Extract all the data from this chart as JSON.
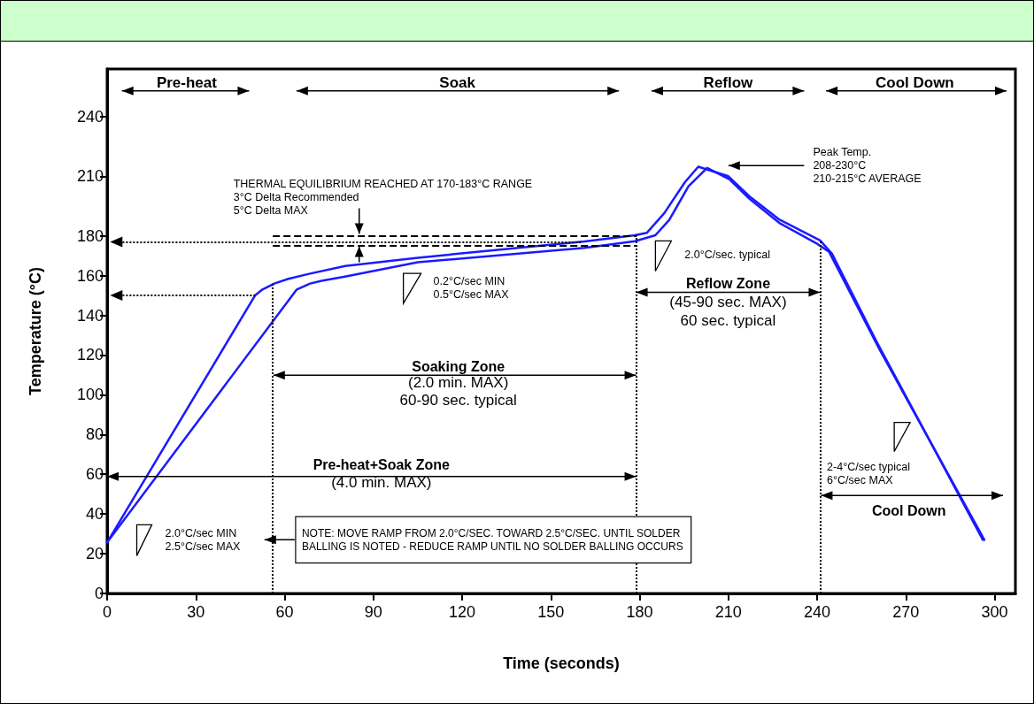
{
  "chart_data": {
    "type": "line",
    "xlabel": "Time (seconds)",
    "ylabel": "Temperature (°C)",
    "xlim": [
      0,
      307
    ],
    "xticks": [
      0,
      30,
      60,
      90,
      120,
      150,
      180,
      210,
      240,
      270,
      300
    ],
    "ylim": [
      0,
      264
    ],
    "yticks": [
      0,
      20,
      40,
      60,
      80,
      100,
      120,
      140,
      160,
      180,
      210,
      240
    ],
    "grid": false,
    "marker": "none",
    "line_style": "solid",
    "series": [
      {
        "color": "#1a1aff",
        "x": [
          0,
          50,
          52.5,
          56.5,
          61.3,
          68.6,
          80.5,
          105,
          161.4,
          178.4,
          182.4,
          188.3,
          195.3,
          199.8,
          210,
          217,
          227,
          241,
          245,
          260,
          296
        ],
        "values": [
          25.7,
          150,
          153,
          156,
          158.4,
          161,
          164.8,
          169,
          177.2,
          180.3,
          181.5,
          191.4,
          207,
          214.8,
          210,
          200,
          188.4,
          177.7,
          171,
          127,
          27
        ]
      },
      {
        "color": "#1a1aff",
        "x": [
          0,
          64.1,
          68.6,
          72.5,
          80.4,
          105,
          161.4,
          178.4,
          185.3,
          190,
          196.5,
          202.8,
          210.3,
          217.2,
          227.2,
          240,
          244,
          261,
          296.5
        ],
        "values": [
          25.7,
          153,
          156,
          157.4,
          159.5,
          166.7,
          174,
          177.3,
          180.3,
          188,
          205,
          214.2,
          208.5,
          198.5,
          186.5,
          176,
          172,
          123,
          27
        ]
      }
    ],
    "ref_lines": [
      {
        "axis": "x",
        "value": 56,
        "color": "#000000",
        "line_style": "dotted"
      },
      {
        "axis": "x",
        "value": 179,
        "color": "#000000",
        "line_style": "dotted"
      },
      {
        "axis": "x",
        "value": 241,
        "color": "#000000",
        "line_style": "dotted"
      },
      {
        "axis": "y",
        "value": 150,
        "color": "#000000",
        "line_style": "dotted"
      },
      {
        "axis": "y",
        "value": 177,
        "color": "#000000",
        "line_style": "dotted"
      },
      {
        "axis": "y",
        "value": 180,
        "color": "#000000",
        "line_style": "dashed"
      },
      {
        "axis": "y",
        "value": 175,
        "color": "#000000",
        "line_style": "dashed"
      }
    ],
    "annotations": [
      "Pre-heat",
      "Soak",
      "Reflow",
      "Cool Down",
      "THERMAL EQUILIBRIUM REACHED AT 170-183°C RANGE\n3°C Delta Recommended\n5°C Delta MAX",
      "0.2°C/sec MIN\n0.5°C/sec MAX",
      "Peak Temp.\n208-230°C\n210-215°C AVERAGE",
      "2.0°C/sec. typical",
      "Reflow Zone",
      "(45-90 sec. MAX)\n60 sec. typical",
      "Soaking Zone",
      "(2.0 min. MAX)\n60-90 sec. typical",
      "Pre-heat+Soak Zone",
      "(4.0 min. MAX)",
      "2.0°C/sec MIN\n2.5°C/sec MAX",
      "NOTE: MOVE RAMP FROM 2.0°C/SEC. TOWARD 2.5°C/SEC. UNTIL SOLDER\nBALLING IS NOTED - REDUCE RAMP UNTIL NO SOLDER BALLING OCCURS",
      "2-4°C/sec typical\n6°C/sec MAX",
      "Cool Down"
    ]
  }
}
